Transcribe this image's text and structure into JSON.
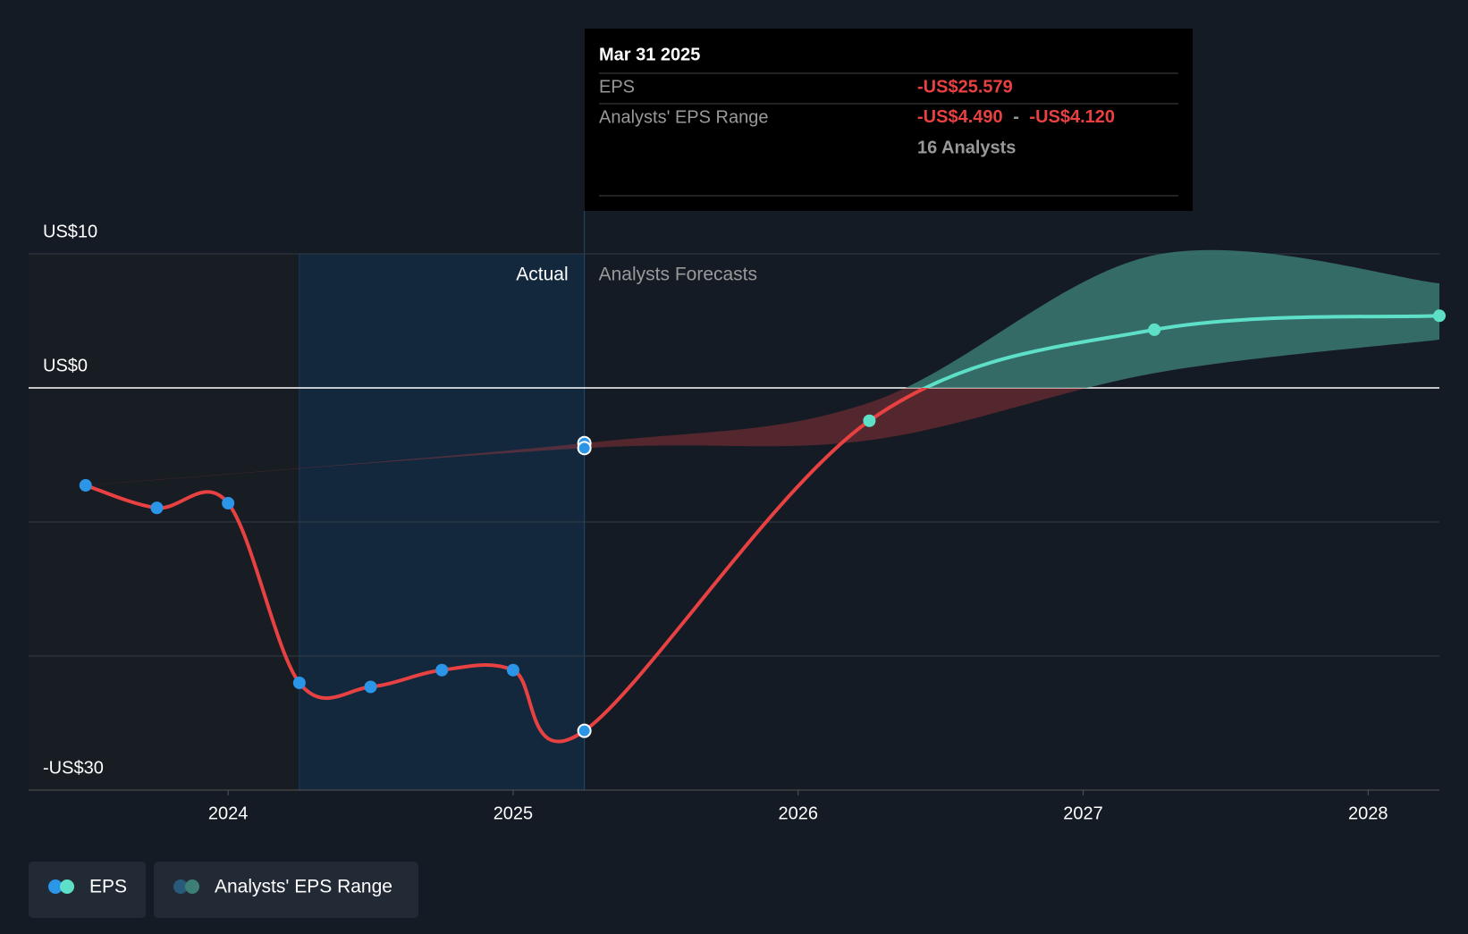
{
  "chart_data": {
    "type": "line",
    "xlim": [
      2023.3,
      2028.25
    ],
    "xticks": [
      {
        "value": 2024,
        "label": "2024"
      },
      {
        "value": 2025,
        "label": "2025"
      },
      {
        "value": 2026,
        "label": "2026"
      },
      {
        "value": 2027,
        "label": "2027"
      },
      {
        "value": 2028,
        "label": "2028"
      }
    ],
    "ylim": [
      -30,
      10
    ],
    "yticks": [
      {
        "value": 10,
        "label": "US$10"
      },
      {
        "value": 0,
        "label": "US$0"
      },
      {
        "value": -10,
        "label": null
      },
      {
        "value": -20,
        "label": null
      },
      {
        "value": -30,
        "label": "-US$30"
      }
    ],
    "grid": true,
    "highlight": [
      2024.25,
      2025.25
    ],
    "divider": 2025.25,
    "actual_label": "Actual",
    "forecast_label": "Analysts Forecasts",
    "eps": {
      "name": "EPS",
      "color": "#e84142",
      "forecast_color": "#5ee0c8",
      "point_color": "#2b95e8",
      "x": [
        2023.5,
        2023.75,
        2024.0,
        2024.25,
        2024.5,
        2024.75,
        2025.0,
        2025.25,
        2026.25,
        2027.25,
        2028.25
      ],
      "values": [
        -7.27,
        -8.95,
        -8.6,
        -22.0,
        -22.3,
        -21.05,
        -21.05,
        -25.579,
        -2.45,
        4.34,
        5.38
      ],
      "forecast_from": 7
    },
    "range": {
      "name": "Analysts' EPS Range",
      "color": "#e84142",
      "forecast_color": "#3d7f77",
      "x": [
        2023.5,
        2025.25,
        2026.25,
        2027.25,
        2028.25
      ],
      "low": [
        -7.27,
        -4.49,
        -3.9,
        1.1,
        3.6
      ],
      "high": [
        -7.27,
        -4.12,
        -1.1,
        9.9,
        7.8
      ]
    },
    "tooltip": {
      "date": "Mar 31 2025",
      "eps_label": "EPS",
      "eps_value": "-US$25.579",
      "range_label": "Analysts' EPS Range",
      "range_low": "-US$4.490",
      "range_sep": "-",
      "range_high": "-US$4.120",
      "analysts": "16 Analysts"
    }
  }
}
